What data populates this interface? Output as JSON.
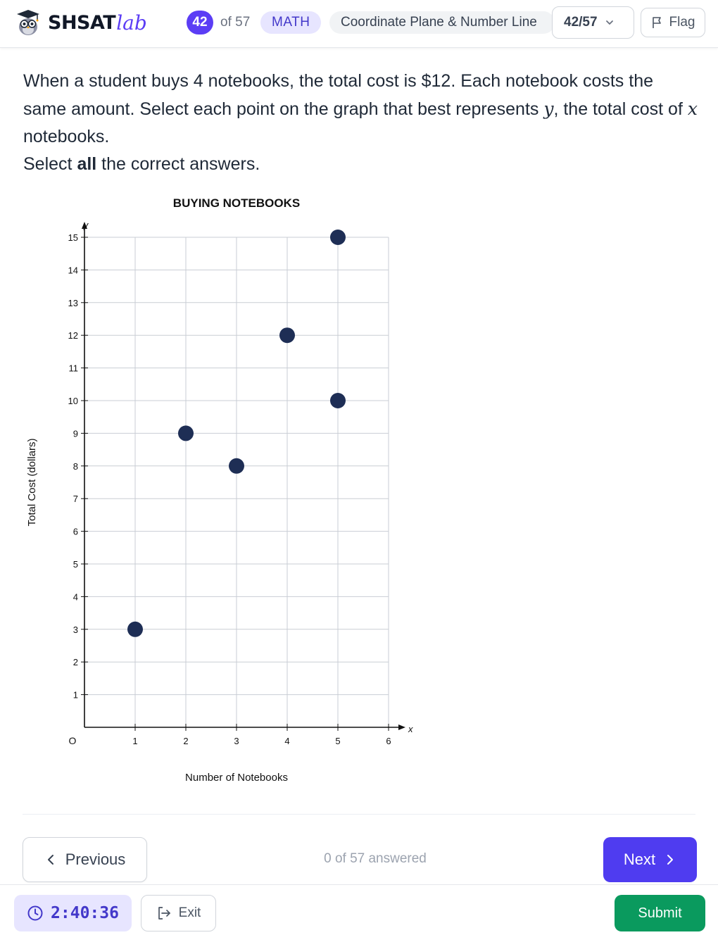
{
  "header": {
    "logo_text": "SHSAT",
    "logo_accent": "lab",
    "question_number": "42",
    "question_total": "of 57",
    "subject": "MATH",
    "topic": "Coordinate Plane & Number Line",
    "selector_value": "42/57",
    "flag_label": "Flag",
    "icons": {
      "logo": "owl-mascot-icon",
      "selector": "chevron-down-icon",
      "flag": "flag-icon"
    }
  },
  "question": {
    "line_pre": "When a student buys 4 notebooks, the total cost is $12. Each notebook costs the same amount. Select each point on the graph that best represents ",
    "var_y": "y",
    "line_mid": ", the total cost of ",
    "var_x": "x",
    "line_post": " notebooks.",
    "instruction_pre": "Select ",
    "instruction_bold": "all",
    "instruction_post": " the correct answers."
  },
  "chart_data": {
    "type": "scatter",
    "title": "BUYING NOTEBOOKS",
    "xlabel": "Number of Notebooks",
    "ylabel": "Total Cost (dollars)",
    "x_axis_var": "x",
    "y_axis_var": "y",
    "origin_label": "O",
    "xlim": [
      0,
      6
    ],
    "ylim": [
      0,
      15
    ],
    "x_ticks": [
      1,
      2,
      3,
      4,
      5,
      6
    ],
    "y_ticks": [
      1,
      2,
      3,
      4,
      5,
      6,
      7,
      8,
      9,
      10,
      11,
      12,
      13,
      14,
      15
    ],
    "grid": true,
    "points": [
      {
        "x": 1,
        "y": 3
      },
      {
        "x": 2,
        "y": 9
      },
      {
        "x": 3,
        "y": 8
      },
      {
        "x": 4,
        "y": 12
      },
      {
        "x": 5,
        "y": 10
      },
      {
        "x": 5,
        "y": 15
      }
    ],
    "point_color": "#1e2e55"
  },
  "nav": {
    "previous_label": "Previous",
    "answered_text": "0 of 57 answered",
    "next_label": "Next",
    "icons": {
      "previous": "chevron-left-icon",
      "next": "chevron-right-icon"
    }
  },
  "footer": {
    "timer": "2:40:36",
    "exit_label": "Exit",
    "submit_label": "Submit",
    "icons": {
      "timer": "clock-icon",
      "exit": "exit-icon"
    }
  },
  "colors": {
    "accent": "#5b3df5",
    "next_button": "#4f3cf0",
    "submit": "#0a9a5e",
    "chip_bg": "#e7e5ff"
  }
}
